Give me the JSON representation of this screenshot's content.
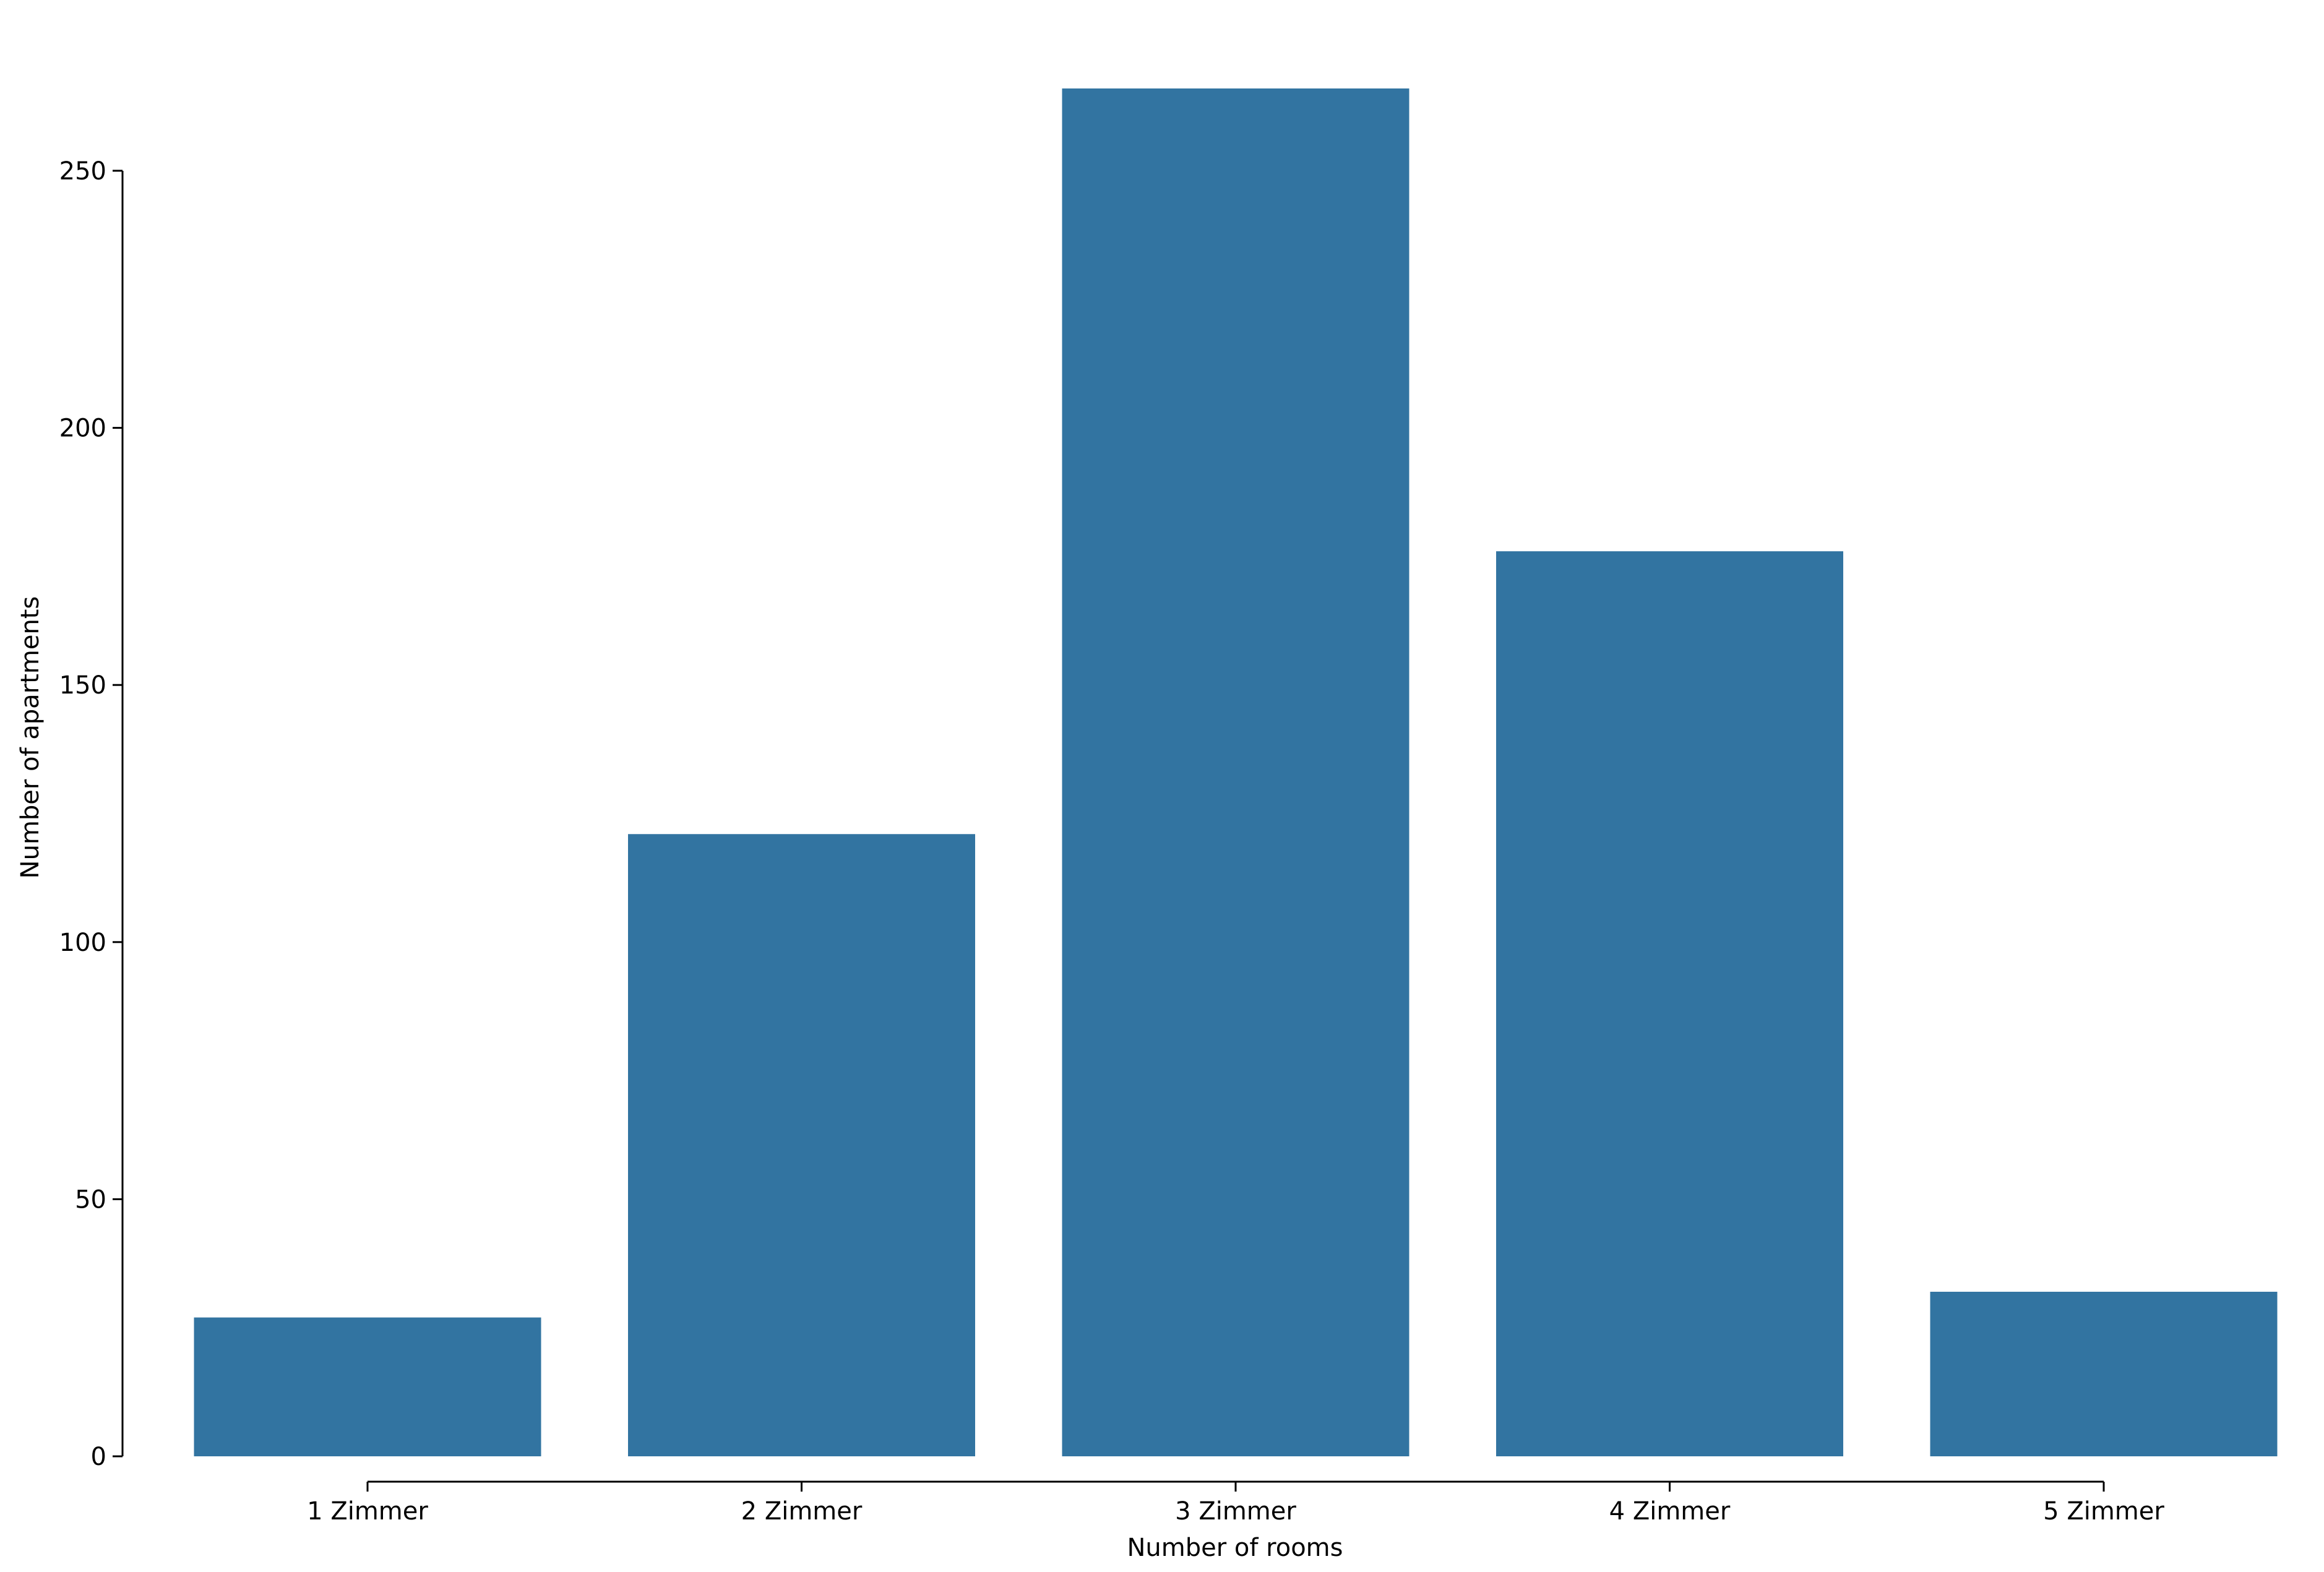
{
  "chart_data": {
    "type": "bar",
    "categories": [
      "1 Zimmer",
      "2 Zimmer",
      "3 Zimmer",
      "4 Zimmer",
      "5 Zimmer"
    ],
    "values": [
      27,
      121,
      266,
      176,
      32
    ],
    "xlabel": "Number of rooms",
    "ylabel": "Number of apartments",
    "ylim": [
      0,
      270
    ],
    "yticks": [
      0,
      50,
      100,
      150,
      200,
      250
    ],
    "grid": false,
    "legend": "none",
    "bar_color": "#3274a1"
  }
}
